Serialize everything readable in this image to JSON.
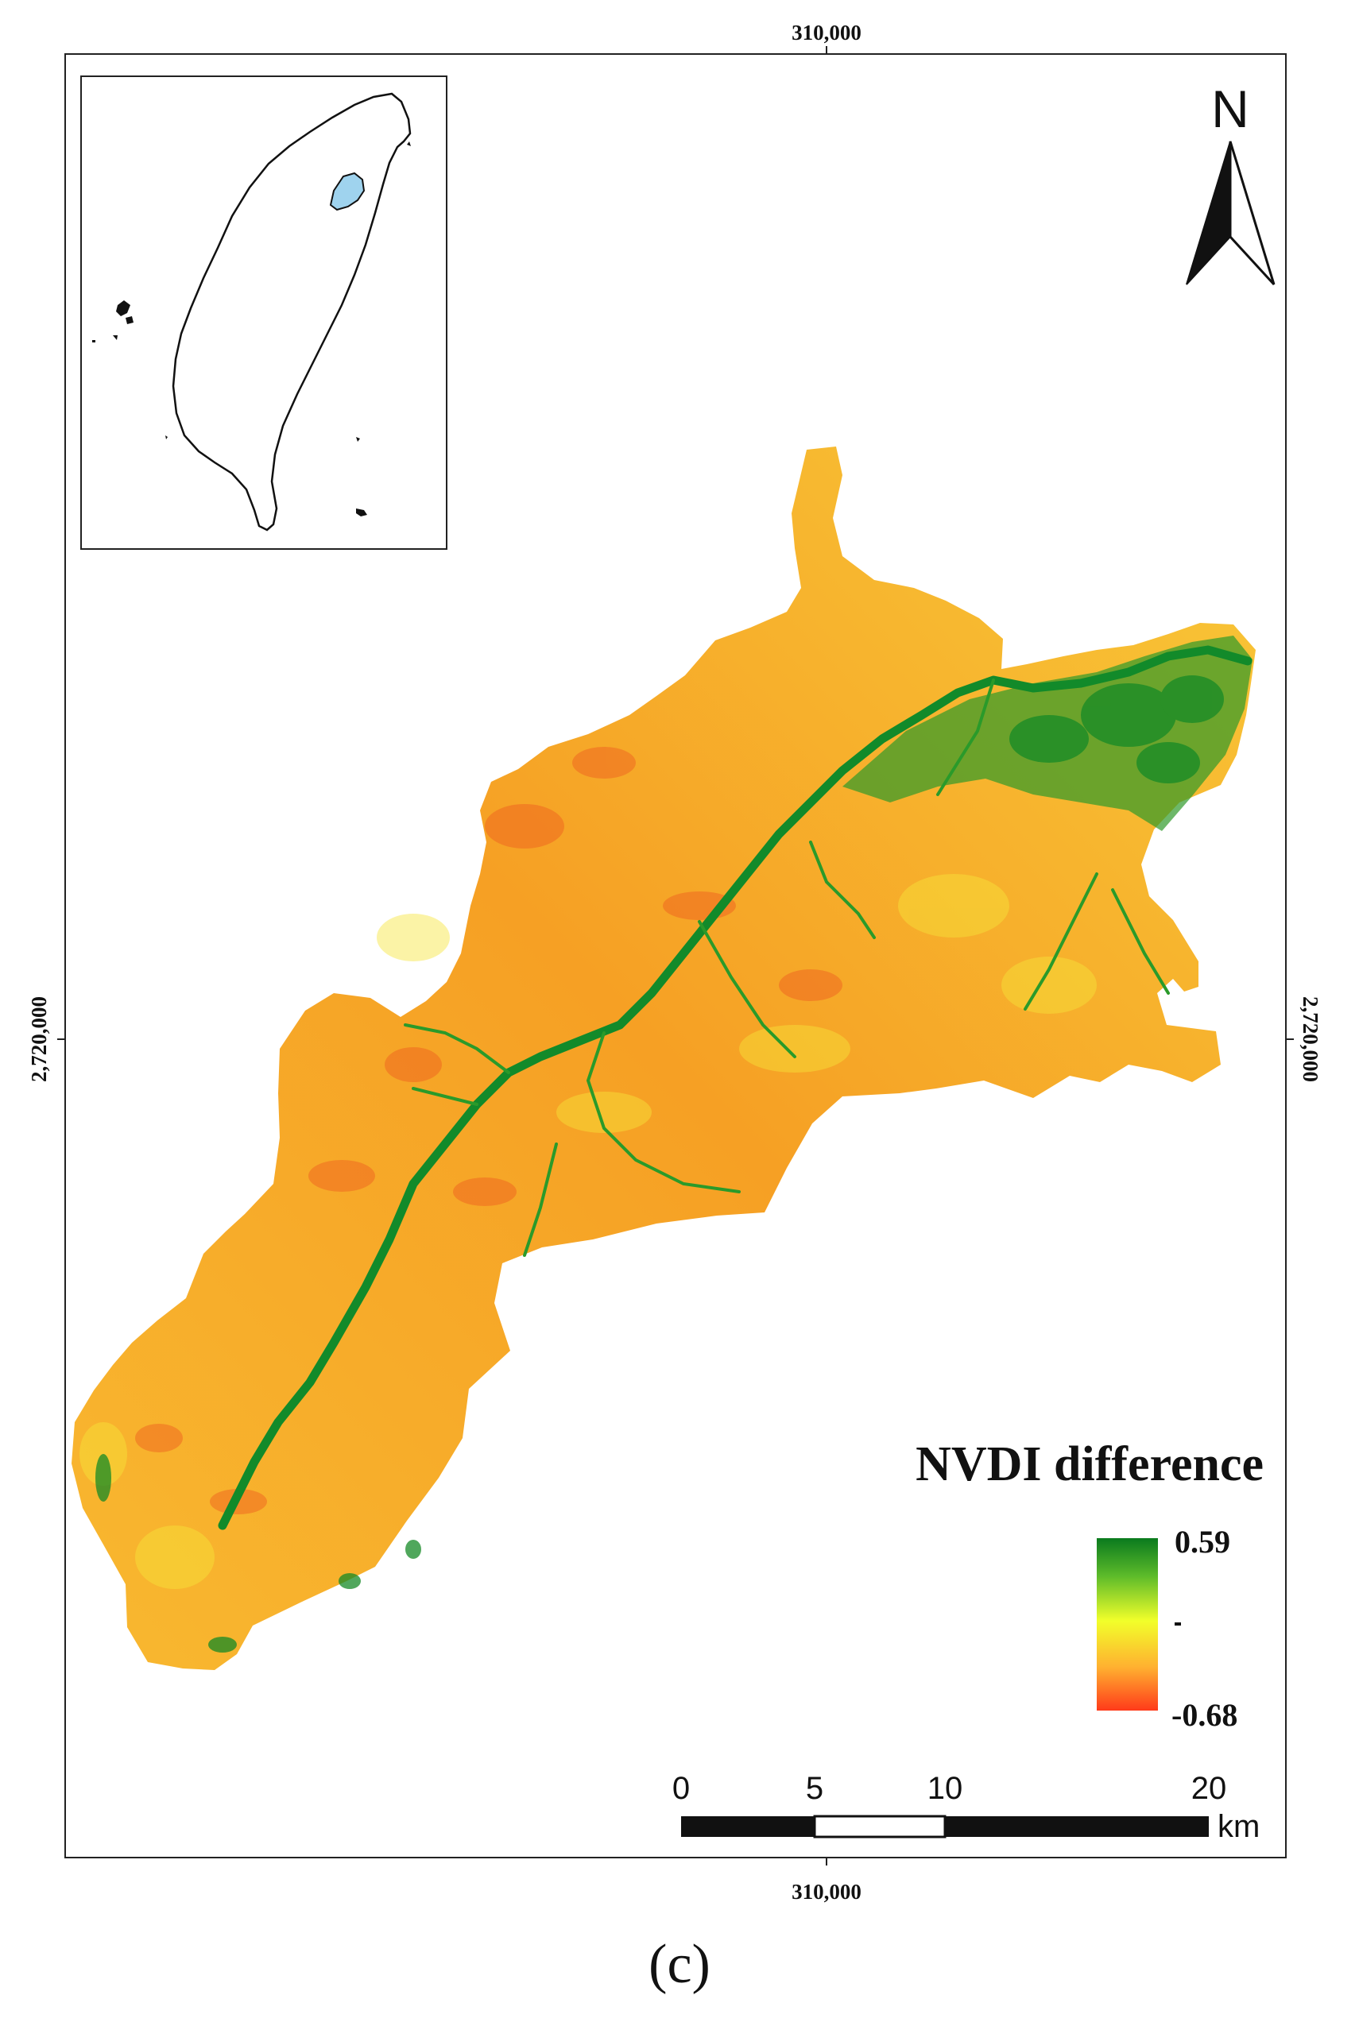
{
  "map": {
    "coord_top": "310,000",
    "coord_bottom": "310,000",
    "coord_left": "2,720,000",
    "coord_right": "2,720,000",
    "north_label": "N",
    "legend": {
      "title": "NVDI difference",
      "max_label": "0.59",
      "min_label": "-0.68",
      "ramp_colors": [
        "#0a7a1e",
        "#5dbb2a",
        "#f2ff2a",
        "#ffb030",
        "#ff3a1a"
      ]
    },
    "scale_bar": {
      "labels": [
        "0",
        "5",
        "10",
        "20"
      ],
      "unit": "km"
    },
    "panel_label": "(c)",
    "colors": {
      "terrain_base": "#f5a22a",
      "river": "#128a2a",
      "inset_highlight": "#9fd3ee"
    }
  }
}
